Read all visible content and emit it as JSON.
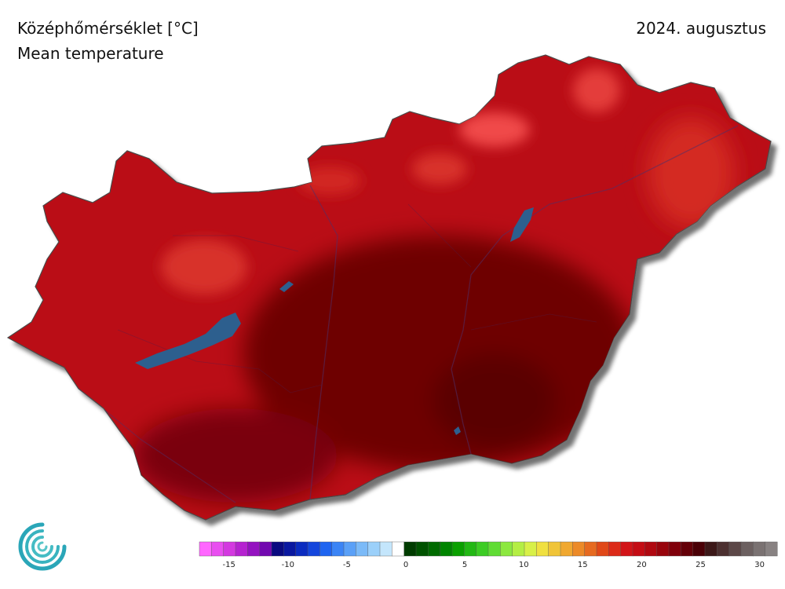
{
  "header": {
    "title_hu": "Középhőmérséklet [°C]",
    "title_en": "Mean temperature",
    "date": "2024. augusztus"
  },
  "map": {
    "country": "Hungary",
    "variable": "mean temperature",
    "unit": "°C",
    "color_ramp": [
      "#8b0000",
      "#a00008",
      "#b80c10",
      "#c8141a",
      "#d41c1c",
      "#e23030",
      "#ee4a4a"
    ],
    "lake_color": "#2d5f8e",
    "border_color": "#555555"
  },
  "legend": {
    "tick_labels": [
      "-15",
      "-10",
      "-5",
      "0",
      "5",
      "10",
      "15",
      "20",
      "25",
      "30"
    ],
    "min": -17,
    "max": 31,
    "step": 1,
    "colors": [
      "#ff66ff",
      "#e94ef0",
      "#d338e0",
      "#b522d0",
      "#9412c0",
      "#7208b0",
      "#0a0a80",
      "#0a18a0",
      "#0b2cc0",
      "#1446dc",
      "#1e64f0",
      "#3b84f5",
      "#5aa0f7",
      "#7bbaf8",
      "#9bd0fa",
      "#c4e6fc",
      "#ffffff",
      "#003c00",
      "#005200",
      "#006a00",
      "#008400",
      "#0aa000",
      "#22b814",
      "#3ccc24",
      "#60dc34",
      "#8ce840",
      "#b4ee44",
      "#d8f048",
      "#f0e040",
      "#f0c438",
      "#f0a830",
      "#ec8a28",
      "#e66a20",
      "#e04818",
      "#dc2a18",
      "#d21418",
      "#c40c14",
      "#b00810",
      "#98040c",
      "#80000a",
      "#640008",
      "#4a0006",
      "#3c1818",
      "#4c3030",
      "#5c4848",
      "#6c6060",
      "#7a7272",
      "#888282"
    ]
  }
}
